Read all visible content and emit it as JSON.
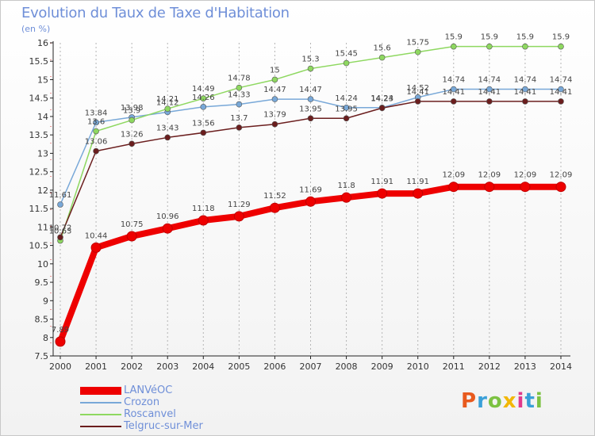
{
  "header": {
    "title": "Evolution du Taux de Taxe d'Habitation",
    "subtitle": "(en %)"
  },
  "logo": {
    "text": "Proxiti",
    "colors": [
      "#e85a1e",
      "#3aa0d8",
      "#7cc242",
      "#f2b705",
      "#e03a8c",
      "#3aa0d8",
      "#7cc242"
    ]
  },
  "chart_data": {
    "type": "line",
    "x": [
      "2000",
      "2001",
      "2002",
      "2003",
      "2004",
      "2005",
      "2006",
      "2007",
      "2008",
      "2009",
      "2010",
      "2011",
      "2012",
      "2013",
      "2014"
    ],
    "ylim": [
      7.5,
      16
    ],
    "yticks": [
      "7.5",
      "8",
      "8.5",
      "9",
      "9.5",
      "10",
      "10.5",
      "11",
      "11.5",
      "12",
      "12.5",
      "13",
      "13.5",
      "14",
      "14.5",
      "15",
      "15.5",
      "16"
    ],
    "grid": "vertical dashed",
    "legend_position": "bottom-left",
    "series": [
      {
        "name": "LANVéOC",
        "color": "#ee0000",
        "width": 8,
        "marker": 6,
        "values": [
          7.89,
          10.44,
          10.75,
          10.96,
          11.18,
          11.29,
          11.52,
          11.69,
          11.8,
          11.91,
          11.91,
          12.09,
          12.09,
          12.09,
          12.09
        ],
        "labels": [
          "7.89",
          "10.44",
          "10.75",
          "10.96",
          "11.18",
          "11.29",
          "11.52",
          "11.69",
          "11.8",
          "11.91",
          "11.91",
          "12.09",
          "12.09",
          "12.09",
          "12.09"
        ]
      },
      {
        "name": "Crozon",
        "color": "#78a8d8",
        "width": 1.5,
        "marker": 3.5,
        "values": [
          11.61,
          13.84,
          13.98,
          14.12,
          14.26,
          14.33,
          14.47,
          14.47,
          14.24,
          14.24,
          14.52,
          14.74,
          14.74,
          14.74,
          14.74
        ],
        "labels": [
          "11.61",
          "13.84",
          "13.98",
          "14.12",
          "14.26",
          "14.33",
          "14.47",
          "14.47",
          "14.24",
          "14.24",
          "14.52",
          "14.74",
          "14.74",
          "14.74",
          "14.74"
        ]
      },
      {
        "name": "Roscanvel",
        "color": "#8ed860",
        "width": 1.5,
        "marker": 3.5,
        "values": [
          10.63,
          13.6,
          13.9,
          14.21,
          14.49,
          14.78,
          15,
          15.3,
          15.45,
          15.6,
          15.75,
          15.9,
          15.9,
          15.9,
          15.9
        ],
        "labels": [
          "10.63",
          "13.6",
          "13.9",
          "14.21",
          "14.49",
          "14.78",
          "15",
          "15.3",
          "15.45",
          "15.6",
          "15.75",
          "15.9",
          "15.9",
          "15.9",
          "15.9"
        ]
      },
      {
        "name": "Telgruc-sur-Mer",
        "color": "#6b1e1e",
        "width": 1.5,
        "marker": 3.5,
        "values": [
          10.72,
          13.06,
          13.26,
          13.43,
          13.56,
          13.7,
          13.79,
          13.95,
          13.95,
          14.23,
          14.41,
          14.41,
          14.41,
          14.41,
          14.41
        ],
        "labels": [
          "10.72",
          "13.06",
          "13.26",
          "13.43",
          "13.56",
          "13.7",
          "13.79",
          "13.95",
          "13.95",
          "14.23",
          "14.41",
          "14.41",
          "14.41",
          "14.41",
          "14.41"
        ]
      }
    ]
  }
}
